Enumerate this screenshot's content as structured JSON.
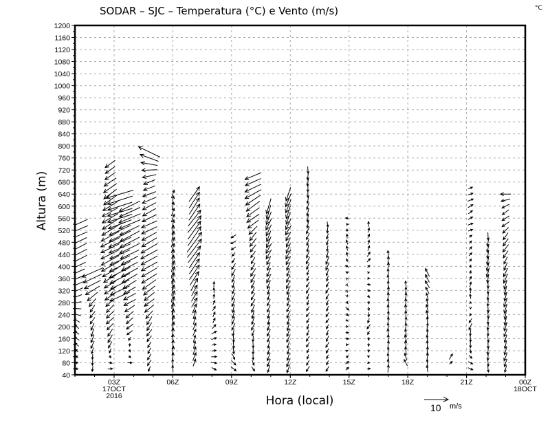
{
  "chart_data": {
    "type": "vector",
    "title": "SODAR – SJC – Temperatura (°C) e Vento (m/s)",
    "corner_label": "°C",
    "xlabel": "Hora (local)",
    "ylabel": "Altura (m)",
    "ylim": [
      40,
      1200
    ],
    "yticks": [
      40,
      80,
      120,
      160,
      200,
      240,
      280,
      320,
      360,
      400,
      440,
      480,
      520,
      560,
      600,
      640,
      680,
      720,
      760,
      800,
      840,
      880,
      920,
      960,
      1000,
      1040,
      1080,
      1120,
      1160,
      1200
    ],
    "xlim_hours": [
      1,
      24
    ],
    "xticks": [
      {
        "hour": 3,
        "lines": [
          "03Z",
          "17OCT",
          "2016"
        ]
      },
      {
        "hour": 6,
        "lines": [
          "06Z"
        ]
      },
      {
        "hour": 9,
        "lines": [
          "09Z"
        ]
      },
      {
        "hour": 12,
        "lines": [
          "12Z"
        ]
      },
      {
        "hour": 15,
        "lines": [
          "15Z"
        ]
      },
      {
        "hour": 18,
        "lines": [
          "18Z"
        ]
      },
      {
        "hour": 21,
        "lines": [
          "21Z"
        ]
      },
      {
        "hour": 24,
        "lines": [
          "00Z",
          "18OCT"
        ]
      }
    ],
    "grid": true,
    "reference_vector": {
      "value": 10,
      "label": "10",
      "unit": "m/s"
    },
    "height_step_m": 20,
    "wind_units": "m/s",
    "columns": [
      {
        "hour": 1.1,
        "bottom": 60,
        "top": 540,
        "profile": [
          [
            60,
            -1,
            0
          ],
          [
            200,
            -2,
            2
          ],
          [
            320,
            -5,
            -2
          ],
          [
            420,
            -8,
            -4
          ],
          [
            540,
            -9,
            -4
          ]
        ]
      },
      {
        "hour": 1.9,
        "bottom": 60,
        "top": 380,
        "profile": [
          [
            60,
            0,
            -2
          ],
          [
            140,
            -1,
            -3
          ],
          [
            260,
            -2,
            -3
          ],
          [
            380,
            -9,
            -4
          ]
        ]
      },
      {
        "hour": 2.8,
        "bottom": 60,
        "top": 740,
        "profile": [
          [
            60,
            2,
            0
          ],
          [
            160,
            -2,
            -3
          ],
          [
            300,
            -4,
            -3
          ],
          [
            440,
            -8,
            -4
          ],
          [
            600,
            -6,
            -4
          ],
          [
            740,
            -4,
            -3
          ]
        ]
      },
      {
        "hour": 3.3,
        "bottom": 300,
        "top": 640,
        "profile": [
          [
            300,
            -8,
            -4
          ],
          [
            500,
            -9,
            -4
          ],
          [
            640,
            -11,
            -3
          ]
        ]
      },
      {
        "hour": 3.8,
        "bottom": 80,
        "top": 600,
        "profile": [
          [
            80,
            2,
            0
          ],
          [
            180,
            -2,
            -2
          ],
          [
            300,
            -5,
            -3
          ],
          [
            460,
            -8,
            -4
          ],
          [
            600,
            -9,
            -4
          ]
        ]
      },
      {
        "hour": 4.8,
        "bottom": 60,
        "top": 780,
        "profile": [
          [
            60,
            -1,
            -2
          ],
          [
            200,
            -2,
            -3
          ],
          [
            400,
            -7,
            -4
          ],
          [
            560,
            -6,
            -3
          ],
          [
            680,
            -5,
            -2
          ],
          [
            720,
            -6,
            0
          ],
          [
            780,
            -9,
            4
          ]
        ]
      },
      {
        "hour": 6.0,
        "bottom": 60,
        "top": 640,
        "profile": [
          [
            60,
            0,
            3
          ],
          [
            300,
            1,
            5
          ],
          [
            500,
            1,
            4
          ],
          [
            640,
            1,
            3
          ]
        ]
      },
      {
        "hour": 7.1,
        "bottom": 80,
        "top": 640,
        "profile": [
          [
            80,
            1,
            3
          ],
          [
            220,
            1,
            3
          ],
          [
            340,
            3,
            5
          ],
          [
            480,
            6,
            8
          ],
          [
            640,
            4,
            6
          ]
        ]
      },
      {
        "hour": 8.1,
        "bottom": 60,
        "top": 340,
        "profile": [
          [
            60,
            2,
            -1
          ],
          [
            160,
            2,
            1
          ],
          [
            240,
            1,
            2
          ],
          [
            340,
            0,
            2
          ]
        ]
      },
      {
        "hour": 9.1,
        "bottom": 60,
        "top": 500,
        "profile": [
          [
            60,
            2,
            -2
          ],
          [
            200,
            -1,
            -3
          ],
          [
            340,
            -1,
            -3
          ],
          [
            500,
            -2,
            -1
          ]
        ]
      },
      {
        "hour": 10.1,
        "bottom": 60,
        "top": 700,
        "profile": [
          [
            60,
            1,
            -2
          ],
          [
            200,
            -1,
            -3
          ],
          [
            460,
            -2,
            -3
          ],
          [
            600,
            -6,
            -4
          ],
          [
            700,
            -7,
            -3
          ]
        ]
      },
      {
        "hour": 10.9,
        "bottom": 60,
        "top": 600,
        "profile": [
          [
            60,
            -1,
            -3
          ],
          [
            300,
            -1,
            -3
          ],
          [
            460,
            -2,
            -4
          ],
          [
            600,
            -2,
            -6
          ]
        ]
      },
      {
        "hour": 11.9,
        "bottom": 60,
        "top": 640,
        "profile": [
          [
            60,
            -1,
            -3
          ],
          [
            300,
            -1,
            -3
          ],
          [
            500,
            -2,
            -4
          ],
          [
            640,
            -2,
            -6
          ]
        ]
      },
      {
        "hour": 12.9,
        "bottom": 60,
        "top": 720,
        "profile": [
          [
            60,
            -1,
            -2
          ],
          [
            300,
            -1,
            -2
          ],
          [
            500,
            -1,
            -3
          ],
          [
            720,
            0,
            -3
          ]
        ]
      },
      {
        "hour": 13.9,
        "bottom": 60,
        "top": 540,
        "profile": [
          [
            60,
            -1,
            -2
          ],
          [
            300,
            -1,
            -2
          ],
          [
            420,
            -1,
            -3
          ],
          [
            540,
            0,
            -2
          ]
        ]
      },
      {
        "hour": 14.9,
        "bottom": 60,
        "top": 560,
        "profile": [
          [
            60,
            1,
            1
          ],
          [
            260,
            1,
            -1
          ],
          [
            400,
            -1,
            1
          ],
          [
            500,
            0,
            2
          ],
          [
            560,
            -1,
            0
          ]
        ]
      },
      {
        "hour": 16.0,
        "bottom": 60,
        "top": 540,
        "profile": [
          [
            60,
            1,
            0
          ],
          [
            200,
            -1,
            -2
          ],
          [
            300,
            1,
            -1
          ],
          [
            460,
            1,
            2
          ],
          [
            540,
            0,
            2
          ]
        ]
      },
      {
        "hour": 17.0,
        "bottom": 60,
        "top": 440,
        "profile": [
          [
            60,
            0,
            3
          ],
          [
            200,
            0,
            3
          ],
          [
            440,
            0,
            3
          ]
        ]
      },
      {
        "hour": 17.9,
        "bottom": 80,
        "top": 340,
        "profile": [
          [
            80,
            -1,
            3
          ],
          [
            200,
            0,
            3
          ],
          [
            340,
            0,
            3
          ]
        ]
      },
      {
        "hour": 19.0,
        "bottom": 60,
        "top": 380,
        "profile": [
          [
            60,
            0,
            3
          ],
          [
            200,
            0,
            3
          ],
          [
            300,
            -1,
            3
          ],
          [
            380,
            -2,
            3
          ]
        ]
      },
      {
        "hour": 20.2,
        "bottom": 80,
        "top": 100,
        "profile": [
          [
            80,
            1,
            1
          ],
          [
            100,
            1,
            2
          ]
        ]
      },
      {
        "hour": 21.2,
        "bottom": 60,
        "top": 660,
        "profile": [
          [
            60,
            2,
            -1
          ],
          [
            200,
            -1,
            -3
          ],
          [
            300,
            0,
            2
          ],
          [
            460,
            1,
            1
          ],
          [
            560,
            2,
            1
          ],
          [
            660,
            2,
            1
          ]
        ]
      },
      {
        "hour": 22.1,
        "bottom": 60,
        "top": 500,
        "profile": [
          [
            60,
            0,
            -3
          ],
          [
            300,
            0,
            -3
          ],
          [
            420,
            -1,
            -4
          ],
          [
            500,
            0,
            -3
          ]
        ]
      },
      {
        "hour": 23.0,
        "bottom": 60,
        "top": 640,
        "profile": [
          [
            60,
            -1,
            -3
          ],
          [
            300,
            -1,
            -4
          ],
          [
            460,
            -2,
            -3
          ],
          [
            580,
            -3,
            -2
          ],
          [
            640,
            -4,
            0
          ]
        ]
      }
    ]
  }
}
